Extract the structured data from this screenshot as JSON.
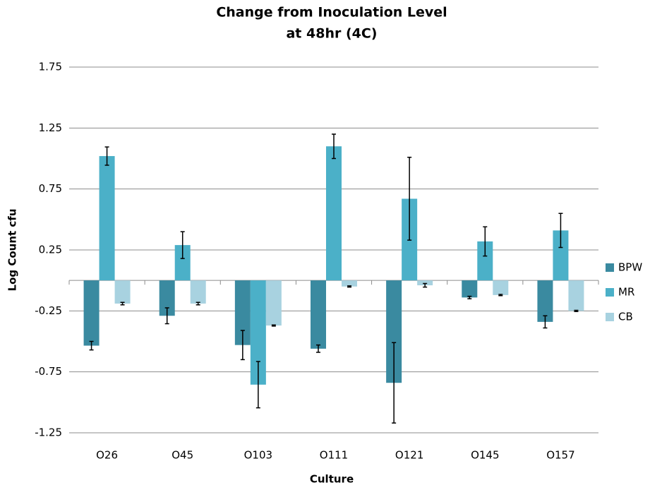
{
  "chart_data": {
    "type": "bar",
    "title": [
      "Change from  Inoculation Level",
      "at 48hr (4C)"
    ],
    "x_label": "Culture",
    "y_label": "Log Count cfu",
    "categories": [
      "O26",
      "O45",
      "O103",
      "O111",
      "O121",
      "O145",
      "O157"
    ],
    "series": [
      {
        "name": "BPW",
        "color": "#3a8aa0",
        "values": [
          -0.535,
          -0.29,
          -0.53,
          -0.56,
          -0.84,
          -0.14,
          -0.34
        ],
        "errors": [
          0.035,
          0.065,
          0.12,
          0.03,
          0.33,
          0.01,
          0.05
        ]
      },
      {
        "name": "MR",
        "color": "#4bb0c8",
        "values": [
          1.02,
          0.29,
          -0.855,
          1.1,
          0.67,
          0.32,
          0.41
        ],
        "errors": [
          0.075,
          0.11,
          0.19,
          0.1,
          0.34,
          0.12,
          0.14
        ]
      },
      {
        "name": "CB",
        "color": "#a8d2e0",
        "values": [
          -0.19,
          -0.19,
          -0.37,
          -0.05,
          -0.04,
          -0.12,
          -0.25
        ],
        "errors": [
          0.01,
          0.01,
          0.005,
          0.005,
          0.015,
          0.005,
          0.005
        ]
      }
    ],
    "ylim": [
      -1.25,
      1.75
    ],
    "yticks": [
      -1.25,
      -0.75,
      -0.25,
      0.25,
      0.75,
      1.25,
      1.75
    ],
    "grid": true,
    "legend": "right"
  }
}
